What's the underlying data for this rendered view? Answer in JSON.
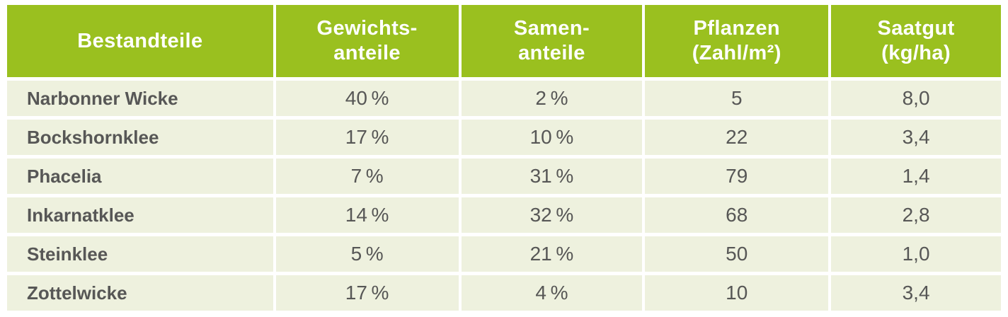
{
  "colors": {
    "header_green": "#9ac01f",
    "row_beige": "#eef1de",
    "gap_white": "#ffffff",
    "header_text": "#ffffff",
    "body_text": "#575756"
  },
  "table": {
    "headers": [
      {
        "line1": "Bestandteile",
        "line2": ""
      },
      {
        "line1": "Gewichts-",
        "line2": "anteile"
      },
      {
        "line1": "Samen-",
        "line2": "anteile"
      },
      {
        "line1": "Pflanzen",
        "line2": "(Zahl/m²)"
      },
      {
        "line1": "Saatgut",
        "line2": "(kg/ha)"
      }
    ],
    "rows": [
      {
        "name": "Narbonner Wicke",
        "gewichtsanteile": "40 %",
        "samenanteile": "2 %",
        "pflanzen": "5",
        "saatgut": "8,0"
      },
      {
        "name": "Bockshornklee",
        "gewichtsanteile": "17 %",
        "samenanteile": "10 %",
        "pflanzen": "22",
        "saatgut": "3,4"
      },
      {
        "name": "Phacelia",
        "gewichtsanteile": "7 %",
        "samenanteile": "31 %",
        "pflanzen": "79",
        "saatgut": "1,4"
      },
      {
        "name": "Inkarnatklee",
        "gewichtsanteile": "14 %",
        "samenanteile": "32 %",
        "pflanzen": "68",
        "saatgut": "2,8"
      },
      {
        "name": "Steinklee",
        "gewichtsanteile": "5 %",
        "samenanteile": "21 %",
        "pflanzen": "50",
        "saatgut": "1,0"
      },
      {
        "name": "Zottelwicke",
        "gewichtsanteile": "17 %",
        "samenanteile": "4 %",
        "pflanzen": "10",
        "saatgut": "3,4"
      }
    ]
  },
  "chart_data": {
    "type": "table",
    "title": "",
    "columns": [
      "Bestandteile",
      "Gewichtsanteile",
      "Samenanteile",
      "Pflanzen (Zahl/m²)",
      "Saatgut (kg/ha)"
    ],
    "rows": [
      [
        "Narbonner Wicke",
        "40 %",
        "2 %",
        5,
        "8,0"
      ],
      [
        "Bockshornklee",
        "17 %",
        "10 %",
        22,
        "3,4"
      ],
      [
        "Phacelia",
        "7 %",
        "31 %",
        79,
        "1,4"
      ],
      [
        "Inkarnatklee",
        "14 %",
        "32 %",
        68,
        "2,8"
      ],
      [
        "Steinklee",
        "5 %",
        "21 %",
        50,
        "1,0"
      ],
      [
        "Zottelwicke",
        "17 %",
        "4 %",
        10,
        "3,4"
      ]
    ],
    "gewichtsanteile_percent": [
      40,
      17,
      7,
      14,
      5,
      17
    ],
    "samenanteile_percent": [
      2,
      10,
      31,
      32,
      21,
      4
    ],
    "pflanzen_zahl_pro_m2": [
      5,
      22,
      79,
      68,
      50,
      10
    ],
    "saatgut_kg_pro_ha": [
      8.0,
      3.4,
      1.4,
      2.8,
      1.0,
      3.4
    ]
  }
}
